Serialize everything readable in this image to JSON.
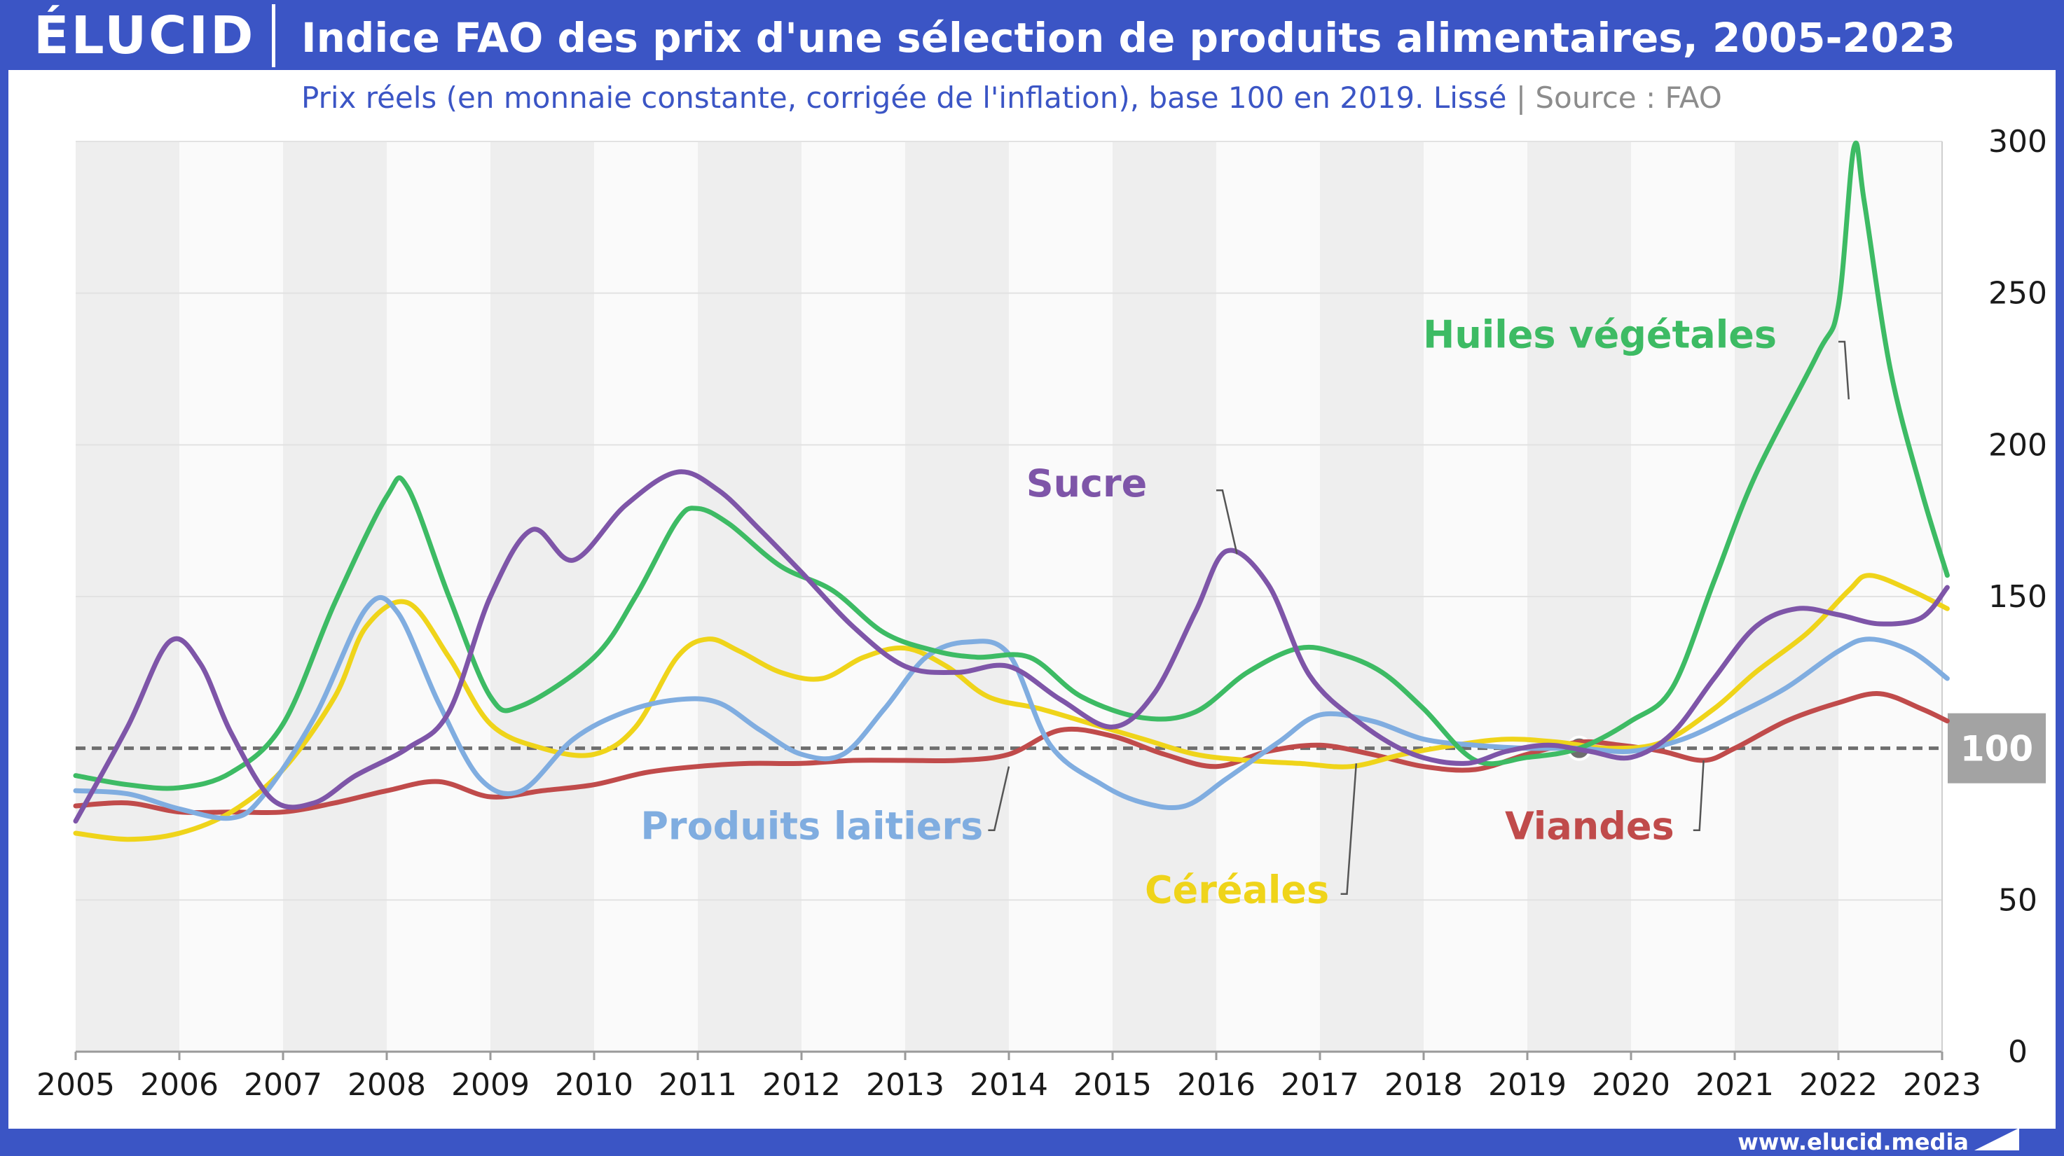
{
  "header": {
    "logo_text": "ÉLUCID",
    "title": "Indice FAO des prix d'une sélection de produits alimentaires, 2005-2023",
    "subtitle": "Prix réels (en monnaie constante, corrigée de l'inflation), base 100 en 2019. Lissé",
    "subtitle_separator": "|",
    "source": "Source : FAO"
  },
  "footer": {
    "website": "www.elucid.media"
  },
  "colors": {
    "frame": "#3b55c5",
    "huiles": "#3dbb64",
    "sucre": "#7e55a8",
    "produits_laitiers": "#80ade0",
    "cereales": "#efd41a",
    "viandes": "#c04b4b",
    "reference": "#6e6e6e"
  },
  "chart_data": {
    "type": "line",
    "title": "Indice FAO des prix d'une sélection de produits alimentaires, 2005-2023",
    "subtitle": "Prix réels (en monnaie constante, corrigée de l'inflation), base 100 en 2019. Lissé",
    "xlim": [
      2005,
      2023
    ],
    "ylim": [
      0,
      300
    ],
    "y_axis_side": "right",
    "x_ticks": [
      "2005",
      "2006",
      "2007",
      "2008",
      "2009",
      "2010",
      "2011",
      "2012",
      "2013",
      "2014",
      "2015",
      "2016",
      "2017",
      "2018",
      "2019",
      "2020",
      "2021",
      "2022",
      "2023"
    ],
    "y_ticks": [
      "0",
      "50",
      "100",
      "150",
      "200",
      "250",
      "300"
    ],
    "reference_line": {
      "value": 100,
      "label": "100",
      "style": "dashed"
    },
    "highlight_point": {
      "x": 2019.5,
      "y": 100
    },
    "alternating_year_bands": true,
    "grid": true,
    "series": [
      {
        "key": "huiles",
        "name": "Huiles végétales",
        "points": [
          [
            2005,
            91
          ],
          [
            2005.5,
            88
          ],
          [
            2006,
            87
          ],
          [
            2006.5,
            92
          ],
          [
            2007,
            108
          ],
          [
            2007.5,
            148
          ],
          [
            2008,
            183
          ],
          [
            2008.2,
            186
          ],
          [
            2008.6,
            150
          ],
          [
            2009,
            117
          ],
          [
            2009.3,
            114
          ],
          [
            2010,
            130
          ],
          [
            2010.4,
            150
          ],
          [
            2010.8,
            175
          ],
          [
            2011,
            179
          ],
          [
            2011.3,
            174
          ],
          [
            2011.8,
            160
          ],
          [
            2012.3,
            152
          ],
          [
            2012.8,
            138
          ],
          [
            2013.3,
            132
          ],
          [
            2013.7,
            130
          ],
          [
            2014.2,
            130
          ],
          [
            2014.7,
            117
          ],
          [
            2015.3,
            110
          ],
          [
            2015.8,
            112
          ],
          [
            2016.3,
            125
          ],
          [
            2016.8,
            133
          ],
          [
            2017.2,
            131
          ],
          [
            2017.6,
            125
          ],
          [
            2018,
            113
          ],
          [
            2018.5,
            96
          ],
          [
            2019,
            97
          ],
          [
            2019.5,
            100
          ],
          [
            2020,
            109
          ],
          [
            2020.4,
            120
          ],
          [
            2020.8,
            155
          ],
          [
            2021.2,
            190
          ],
          [
            2021.8,
            230
          ],
          [
            2022,
            246
          ],
          [
            2022.15,
            298
          ],
          [
            2022.25,
            280
          ],
          [
            2022.5,
            225
          ],
          [
            2022.8,
            185
          ],
          [
            2023.05,
            157
          ]
        ]
      },
      {
        "key": "sucre",
        "name": "Sucre",
        "points": [
          [
            2005,
            76
          ],
          [
            2005.5,
            107
          ],
          [
            2005.9,
            135
          ],
          [
            2006.2,
            128
          ],
          [
            2006.5,
            105
          ],
          [
            2006.9,
            83
          ],
          [
            2007.3,
            82
          ],
          [
            2007.7,
            91
          ],
          [
            2008.2,
            100
          ],
          [
            2008.6,
            112
          ],
          [
            2009,
            150
          ],
          [
            2009.4,
            172
          ],
          [
            2009.8,
            162
          ],
          [
            2010.3,
            180
          ],
          [
            2010.8,
            191
          ],
          [
            2011.2,
            185
          ],
          [
            2011.6,
            172
          ],
          [
            2012,
            158
          ],
          [
            2012.5,
            140
          ],
          [
            2013,
            127
          ],
          [
            2013.5,
            125
          ],
          [
            2014,
            127
          ],
          [
            2014.5,
            116
          ],
          [
            2015,
            107
          ],
          [
            2015.4,
            118
          ],
          [
            2015.8,
            145
          ],
          [
            2016.1,
            165
          ],
          [
            2016.5,
            154
          ],
          [
            2016.9,
            124
          ],
          [
            2017.4,
            108
          ],
          [
            2017.9,
            98
          ],
          [
            2018.4,
            95
          ],
          [
            2018.8,
            99
          ],
          [
            2019.2,
            101
          ],
          [
            2019.6,
            99
          ],
          [
            2020,
            97
          ],
          [
            2020.4,
            105
          ],
          [
            2020.8,
            123
          ],
          [
            2021.2,
            140
          ],
          [
            2021.6,
            146
          ],
          [
            2022,
            144
          ],
          [
            2022.4,
            141
          ],
          [
            2022.8,
            143
          ],
          [
            2023.05,
            153
          ]
        ]
      },
      {
        "key": "laitiers",
        "name": "Produits laitiers",
        "points": [
          [
            2005,
            86
          ],
          [
            2005.5,
            85
          ],
          [
            2006,
            80
          ],
          [
            2006.5,
            77
          ],
          [
            2006.8,
            84
          ],
          [
            2007.3,
            110
          ],
          [
            2007.8,
            146
          ],
          [
            2008.1,
            145
          ],
          [
            2008.5,
            115
          ],
          [
            2008.9,
            90
          ],
          [
            2009.3,
            86
          ],
          [
            2009.8,
            103
          ],
          [
            2010.3,
            112
          ],
          [
            2010.8,
            116
          ],
          [
            2011.2,
            115
          ],
          [
            2011.6,
            106
          ],
          [
            2012,
            98
          ],
          [
            2012.4,
            98
          ],
          [
            2012.8,
            113
          ],
          [
            2013.2,
            130
          ],
          [
            2013.6,
            135
          ],
          [
            2014,
            131
          ],
          [
            2014.4,
            101
          ],
          [
            2014.9,
            88
          ],
          [
            2015.3,
            82
          ],
          [
            2015.7,
            81
          ],
          [
            2016.1,
            90
          ],
          [
            2016.6,
            102
          ],
          [
            2017,
            111
          ],
          [
            2017.5,
            109
          ],
          [
            2018,
            103
          ],
          [
            2018.5,
            101
          ],
          [
            2019,
            100
          ],
          [
            2019.5,
            100
          ],
          [
            2020,
            99
          ],
          [
            2020.5,
            103
          ],
          [
            2021,
            111
          ],
          [
            2021.5,
            120
          ],
          [
            2022,
            132
          ],
          [
            2022.3,
            136
          ],
          [
            2022.7,
            132
          ],
          [
            2023.05,
            123
          ]
        ]
      },
      {
        "key": "cereales",
        "name": "Céréales",
        "points": [
          [
            2005,
            72
          ],
          [
            2005.5,
            70
          ],
          [
            2006,
            72
          ],
          [
            2006.5,
            79
          ],
          [
            2007,
            93
          ],
          [
            2007.5,
            117
          ],
          [
            2007.8,
            140
          ],
          [
            2008.2,
            148
          ],
          [
            2008.6,
            130
          ],
          [
            2009,
            108
          ],
          [
            2009.5,
            100
          ],
          [
            2010,
            98
          ],
          [
            2010.4,
            107
          ],
          [
            2010.8,
            130
          ],
          [
            2011.1,
            136
          ],
          [
            2011.4,
            132
          ],
          [
            2011.8,
            125
          ],
          [
            2012.2,
            123
          ],
          [
            2012.6,
            130
          ],
          [
            2013,
            133
          ],
          [
            2013.4,
            127
          ],
          [
            2013.8,
            117
          ],
          [
            2014.3,
            113
          ],
          [
            2014.8,
            108
          ],
          [
            2015.3,
            103
          ],
          [
            2015.8,
            98
          ],
          [
            2016.3,
            96
          ],
          [
            2016.8,
            95
          ],
          [
            2017.3,
            94
          ],
          [
            2017.8,
            98
          ],
          [
            2018.3,
            101
          ],
          [
            2018.8,
            103
          ],
          [
            2019.3,
            102
          ],
          [
            2019.8,
            100
          ],
          [
            2020.3,
            102
          ],
          [
            2020.8,
            113
          ],
          [
            2021.2,
            125
          ],
          [
            2021.7,
            138
          ],
          [
            2022.1,
            152
          ],
          [
            2022.3,
            157
          ],
          [
            2022.7,
            152
          ],
          [
            2023.05,
            146
          ]
        ]
      },
      {
        "key": "viandes",
        "name": "Viandes",
        "points": [
          [
            2005,
            81
          ],
          [
            2005.5,
            82
          ],
          [
            2006,
            79
          ],
          [
            2006.5,
            79
          ],
          [
            2007,
            79
          ],
          [
            2007.5,
            82
          ],
          [
            2008,
            86
          ],
          [
            2008.5,
            89
          ],
          [
            2009,
            84
          ],
          [
            2009.5,
            86
          ],
          [
            2010,
            88
          ],
          [
            2010.5,
            92
          ],
          [
            2011,
            94
          ],
          [
            2011.5,
            95
          ],
          [
            2012,
            95
          ],
          [
            2012.5,
            96
          ],
          [
            2013,
            96
          ],
          [
            2013.5,
            96
          ],
          [
            2014,
            98
          ],
          [
            2014.5,
            106
          ],
          [
            2015,
            104
          ],
          [
            2015.5,
            98
          ],
          [
            2016,
            94
          ],
          [
            2016.5,
            99
          ],
          [
            2017,
            101
          ],
          [
            2017.5,
            98
          ],
          [
            2018,
            94
          ],
          [
            2018.5,
            93
          ],
          [
            2019,
            98
          ],
          [
            2019.5,
            102
          ],
          [
            2019.9,
            101
          ],
          [
            2020.3,
            99
          ],
          [
            2020.7,
            96
          ],
          [
            2021,
            100
          ],
          [
            2021.5,
            109
          ],
          [
            2022,
            115
          ],
          [
            2022.4,
            118
          ],
          [
            2022.8,
            113
          ],
          [
            2023.05,
            109
          ]
        ]
      }
    ],
    "labels": [
      {
        "key": "huiles",
        "text": "Huiles végétales",
        "x": 2019.7,
        "y": 232,
        "anchor": "middle",
        "leader": [
          [
            2022.0,
            234
          ],
          [
            2022.06,
            234
          ],
          [
            2022.1,
            215
          ]
        ]
      },
      {
        "key": "sucre",
        "text": "Sucre",
        "x": 2014.75,
        "y": 183,
        "anchor": "middle",
        "leader": [
          [
            2016.0,
            185
          ],
          [
            2016.06,
            185
          ],
          [
            2016.2,
            164
          ]
        ]
      },
      {
        "key": "laitiers",
        "text": "Produits laitiers",
        "x": 2012.1,
        "y": 70,
        "anchor": "middle",
        "leader": [
          [
            2013.8,
            73
          ],
          [
            2013.86,
            73
          ],
          [
            2014.0,
            94
          ]
        ]
      },
      {
        "key": "cereales",
        "text": "Céréales",
        "x": 2016.2,
        "y": 49,
        "anchor": "middle",
        "leader": [
          [
            2017.2,
            52
          ],
          [
            2017.26,
            52
          ],
          [
            2017.35,
            95
          ]
        ]
      },
      {
        "key": "viandes",
        "text": "Viandes",
        "x": 2019.6,
        "y": 70,
        "anchor": "middle",
        "leader": [
          [
            2020.6,
            73
          ],
          [
            2020.66,
            73
          ],
          [
            2020.7,
            96
          ]
        ]
      }
    ]
  }
}
